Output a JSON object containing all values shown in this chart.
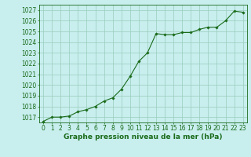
{
  "x": [
    0,
    1,
    2,
    3,
    4,
    5,
    6,
    7,
    8,
    9,
    10,
    11,
    12,
    13,
    14,
    15,
    16,
    17,
    18,
    19,
    20,
    21,
    22,
    23
  ],
  "y": [
    1016.6,
    1017.0,
    1017.0,
    1017.1,
    1017.5,
    1017.7,
    1018.0,
    1018.5,
    1018.8,
    1019.6,
    1020.8,
    1022.2,
    1023.0,
    1024.8,
    1024.7,
    1024.7,
    1024.9,
    1024.9,
    1025.2,
    1025.4,
    1025.4,
    1026.0,
    1026.9,
    1026.8
  ],
  "line_color": "#1a6b1a",
  "marker": "D",
  "marker_size": 1.8,
  "bg_color": "#c8eeee",
  "grid_color": "#99ccbb",
  "xlim": [
    -0.5,
    23.5
  ],
  "ylim": [
    1016.5,
    1027.5
  ],
  "yticks": [
    1017,
    1018,
    1019,
    1020,
    1021,
    1022,
    1023,
    1024,
    1025,
    1026,
    1027
  ],
  "xticks": [
    0,
    1,
    2,
    3,
    4,
    5,
    6,
    7,
    8,
    9,
    10,
    11,
    12,
    13,
    14,
    15,
    16,
    17,
    18,
    19,
    20,
    21,
    22,
    23
  ],
  "xlabel": "Graphe pression niveau de la mer (hPa)",
  "tick_fontsize": 5.5,
  "xlabel_fontsize": 6.5
}
